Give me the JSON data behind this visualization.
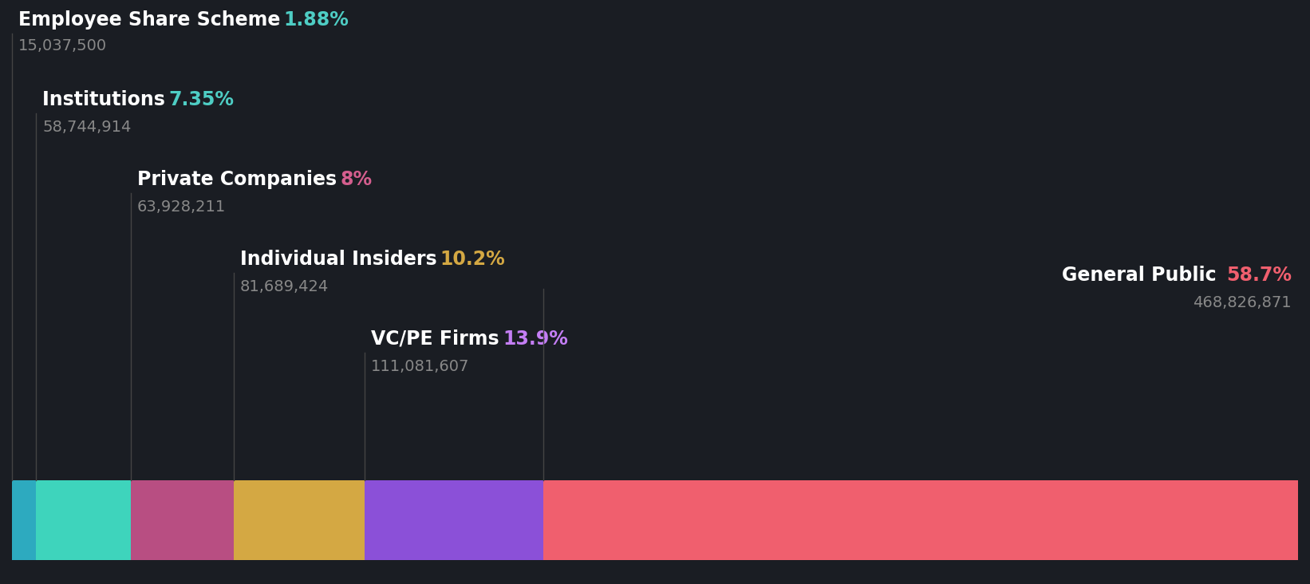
{
  "background_color": "#1a1d23",
  "categories": [
    "Employee Share Scheme",
    "Institutions",
    "Private Companies",
    "Individual Insiders",
    "VC/PE Firms",
    "General Public"
  ],
  "percentages": [
    1.88,
    7.35,
    8.0,
    10.2,
    13.9,
    58.7
  ],
  "values_str": [
    "15,037,500",
    "58,744,914",
    "63,928,211",
    "81,689,424",
    "111,081,607",
    "468,826,871"
  ],
  "pct_labels": [
    "1.88%",
    "7.35%",
    "8%",
    "10.2%",
    "13.9%",
    "58.7%"
  ],
  "bar_colors": [
    "#2daabf",
    "#3ed4bc",
    "#b84e82",
    "#d4a843",
    "#8b50d8",
    "#f05f6e"
  ],
  "pct_colors": [
    "#4ecdc4",
    "#4ecdc4",
    "#d45e8e",
    "#d4a843",
    "#c47ef5",
    "#f05f6e"
  ],
  "text_color": "#ffffff",
  "value_color": "#888888",
  "line_color": "#444444",
  "figsize": [
    16.42,
    7.32
  ],
  "dpi": 100,
  "label_name_fontsize": 17,
  "label_pct_fontsize": 17,
  "value_fontsize": 14
}
